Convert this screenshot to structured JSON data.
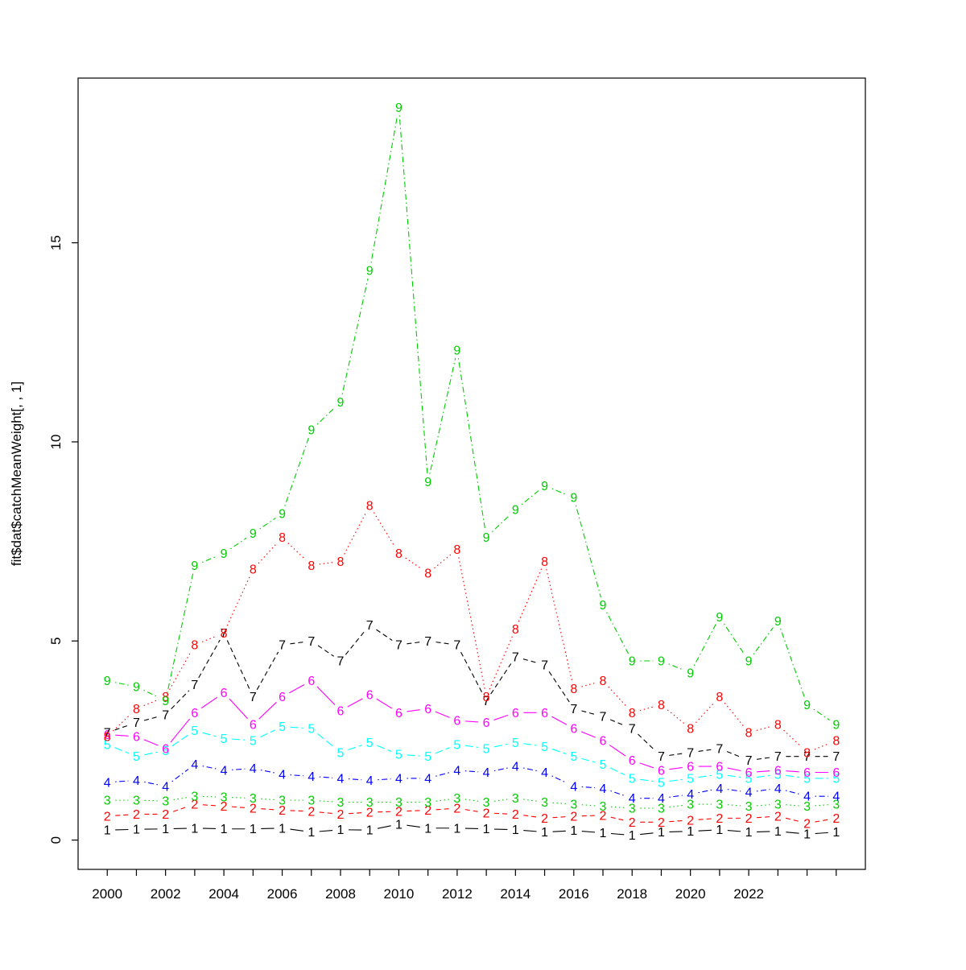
{
  "figure": {
    "background": "#ffffff",
    "description": "R matplot type='b' plot of catch mean weight at age, ages 1-9 plotted as numeric characters"
  },
  "chart_data": {
    "type": "line",
    "title": "",
    "xlabel": "",
    "ylabel": "fit$dat$catchMeanWeight[, , 1]",
    "x": [
      2000,
      2001,
      2002,
      2003,
      2004,
      2005,
      2006,
      2007,
      2008,
      2009,
      2010,
      2011,
      2012,
      2013,
      2014,
      2015,
      2016,
      2017,
      2018,
      2019,
      2020,
      2021,
      2022,
      2023,
      2024,
      2025
    ],
    "ylim": [
      0,
      18.4
    ],
    "yticks": [
      0,
      5,
      10,
      15
    ],
    "xtick_label_years": [
      2000,
      2002,
      2004,
      2006,
      2008,
      2010,
      2012,
      2014,
      2016,
      2018,
      2020,
      2022
    ],
    "xtick_labels": [
      "2000",
      "2002",
      "2004",
      "2006",
      "2008",
      "2010",
      "2012",
      "2014",
      "2016",
      "2018",
      "2020",
      "2022"
    ],
    "grid": false,
    "legend": "none",
    "point_marker": "series name digit used as plotting character",
    "series": [
      {
        "name": "1",
        "color": "#000000",
        "linetype": "solid",
        "values": [
          0.25,
          0.27,
          0.28,
          0.3,
          0.28,
          0.28,
          0.3,
          0.2,
          0.26,
          0.25,
          0.4,
          0.3,
          0.3,
          0.28,
          0.26,
          0.2,
          0.24,
          0.18,
          0.12,
          0.2,
          0.22,
          0.26,
          0.2,
          0.22,
          0.15,
          0.2
        ]
      },
      {
        "name": "2",
        "color": "#FF0000",
        "linetype": "dashed",
        "values": [
          0.6,
          0.65,
          0.65,
          0.9,
          0.85,
          0.8,
          0.75,
          0.72,
          0.65,
          0.7,
          0.72,
          0.75,
          0.8,
          0.68,
          0.65,
          0.55,
          0.6,
          0.62,
          0.45,
          0.45,
          0.5,
          0.55,
          0.55,
          0.6,
          0.42,
          0.55
        ]
      },
      {
        "name": "3",
        "color": "#00CD00",
        "linetype": "dotted",
        "values": [
          1.0,
          1.0,
          0.98,
          1.1,
          1.08,
          1.05,
          1.0,
          1.0,
          0.95,
          0.95,
          0.95,
          0.95,
          1.05,
          0.95,
          1.05,
          0.95,
          0.9,
          0.85,
          0.8,
          0.8,
          0.9,
          0.9,
          0.85,
          0.9,
          0.85,
          0.9
        ]
      },
      {
        "name": "4",
        "color": "#0000FF",
        "linetype": "dotdash",
        "values": [
          1.45,
          1.5,
          1.35,
          1.9,
          1.75,
          1.8,
          1.65,
          1.6,
          1.55,
          1.5,
          1.55,
          1.55,
          1.75,
          1.7,
          1.85,
          1.7,
          1.35,
          1.3,
          1.05,
          1.05,
          1.15,
          1.3,
          1.2,
          1.3,
          1.1,
          1.1
        ]
      },
      {
        "name": "5",
        "color": "#00FFFF",
        "linetype": "longdash",
        "values": [
          2.4,
          2.1,
          2.25,
          2.75,
          2.55,
          2.5,
          2.85,
          2.8,
          2.2,
          2.45,
          2.15,
          2.1,
          2.4,
          2.3,
          2.45,
          2.35,
          2.1,
          1.9,
          1.55,
          1.45,
          1.55,
          1.65,
          1.55,
          1.65,
          1.55,
          1.55
        ]
      },
      {
        "name": "6",
        "color": "#FF00FF",
        "linetype": "solid",
        "values": [
          2.65,
          2.6,
          2.3,
          3.2,
          3.7,
          2.9,
          3.6,
          4.0,
          3.25,
          3.65,
          3.2,
          3.3,
          3.0,
          2.95,
          3.2,
          3.2,
          2.8,
          2.5,
          2.0,
          1.75,
          1.85,
          1.85,
          1.7,
          1.75,
          1.7,
          1.7
        ]
      },
      {
        "name": "7",
        "color": "#000000",
        "linetype": "dashed",
        "values": [
          2.7,
          2.95,
          3.15,
          3.9,
          5.2,
          3.6,
          4.9,
          5.0,
          4.5,
          5.4,
          4.9,
          5.0,
          4.9,
          3.5,
          4.6,
          4.4,
          3.3,
          3.1,
          2.8,
          2.1,
          2.2,
          2.3,
          2.0,
          2.1,
          2.1,
          2.1
        ]
      },
      {
        "name": "8",
        "color": "#FF0000",
        "linetype": "dotted",
        "values": [
          2.6,
          3.3,
          3.6,
          4.9,
          5.2,
          6.8,
          7.6,
          6.9,
          7.0,
          8.4,
          7.2,
          6.7,
          7.3,
          3.6,
          5.3,
          7.0,
          3.8,
          4.0,
          3.2,
          3.4,
          2.8,
          3.6,
          2.7,
          2.9,
          2.2,
          2.5
        ]
      },
      {
        "name": "9",
        "color": "#00CD00",
        "linetype": "dotdash",
        "values": [
          4.0,
          3.85,
          3.5,
          6.9,
          7.2,
          7.7,
          8.2,
          10.3,
          11.0,
          14.3,
          18.4,
          9.0,
          12.3,
          7.6,
          8.3,
          8.9,
          8.6,
          5.9,
          4.5,
          4.5,
          4.2,
          5.6,
          4.5,
          5.5,
          3.4,
          2.9
        ]
      }
    ]
  }
}
